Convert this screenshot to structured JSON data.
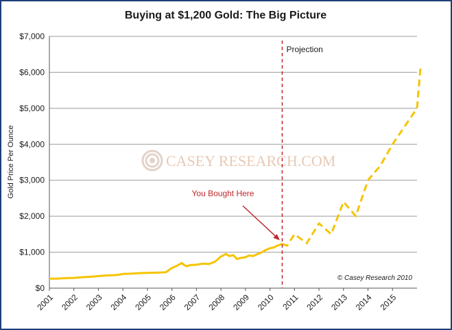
{
  "chart_data": {
    "type": "line",
    "title": "Buying at $1,200 Gold: The Big Picture",
    "ylabel": "Gold Price Per Ounce",
    "xlabel": "",
    "y_tick_labels": [
      "$0",
      "$1,000",
      "$2,000",
      "$3,000",
      "$4,000",
      "$5,000",
      "$6,000",
      "$7,000"
    ],
    "y_tick_values": [
      0,
      1000,
      2000,
      3000,
      4000,
      5000,
      6000,
      7000
    ],
    "ylim": [
      0,
      7000
    ],
    "x_tick_labels": [
      "2001",
      "2002",
      "2003",
      "2004",
      "2005",
      "2006",
      "2007",
      "2008",
      "2009",
      "2010",
      "2011",
      "2012",
      "2013",
      "2014",
      "2015"
    ],
    "x_tick_values": [
      2001,
      2002,
      2003,
      2004,
      2005,
      2006,
      2007,
      2008,
      2009,
      2010,
      2011,
      2012,
      2013,
      2014,
      2015
    ],
    "xlim": [
      2001,
      2016
    ],
    "grid": "horizontal",
    "series": [
      {
        "style": "solid",
        "color": "#f5c400",
        "x": [
          2001.0,
          2001.25,
          2001.5,
          2001.75,
          2002.0,
          2002.25,
          2002.5,
          2002.75,
          2003.0,
          2003.2,
          2003.4,
          2003.6,
          2003.8,
          2004.0,
          2004.25,
          2004.5,
          2004.75,
          2005.0,
          2005.25,
          2005.5,
          2005.75,
          2006.0,
          2006.2,
          2006.4,
          2006.5,
          2006.6,
          2006.75,
          2007.0,
          2007.25,
          2007.5,
          2007.75,
          2008.0,
          2008.2,
          2008.35,
          2008.5,
          2008.65,
          2008.8,
          2009.0,
          2009.15,
          2009.3,
          2009.5,
          2009.65,
          2009.8,
          2010.0,
          2010.15,
          2010.3,
          2010.5
        ],
        "y": [
          265,
          262,
          270,
          280,
          285,
          300,
          310,
          320,
          335,
          345,
          355,
          360,
          370,
          395,
          400,
          410,
          420,
          425,
          430,
          435,
          440,
          560,
          620,
          700,
          640,
          610,
          640,
          650,
          680,
          670,
          730,
          880,
          950,
          890,
          920,
          810,
          840,
          860,
          910,
          890,
          950,
          990,
          1050,
          1110,
          1130,
          1180,
          1230
        ]
      },
      {
        "style": "dashed",
        "color": "#f5c400",
        "x": [
          2010.5,
          2010.7,
          2011.0,
          2011.5,
          2012.0,
          2012.5,
          2013.0,
          2013.5,
          2014.0,
          2014.5,
          2015.0,
          2015.5,
          2016.0,
          2016.15
        ],
        "y": [
          1230,
          1180,
          1500,
          1250,
          1800,
          1500,
          2400,
          2000,
          3000,
          3400,
          4000,
          4500,
          5000,
          6200
        ]
      }
    ],
    "reference_line": {
      "x": 2010.5,
      "label": "Projection",
      "color": "#c0272d",
      "style": "dashed"
    },
    "annotations": [
      {
        "text": "You Bought Here",
        "color": "#c0272d",
        "points_to": {
          "x": 2010.4,
          "y": 1330
        }
      }
    ],
    "watermark": "CASEY RESEARCH.COM",
    "copyright": "© Casey Research 2010"
  }
}
